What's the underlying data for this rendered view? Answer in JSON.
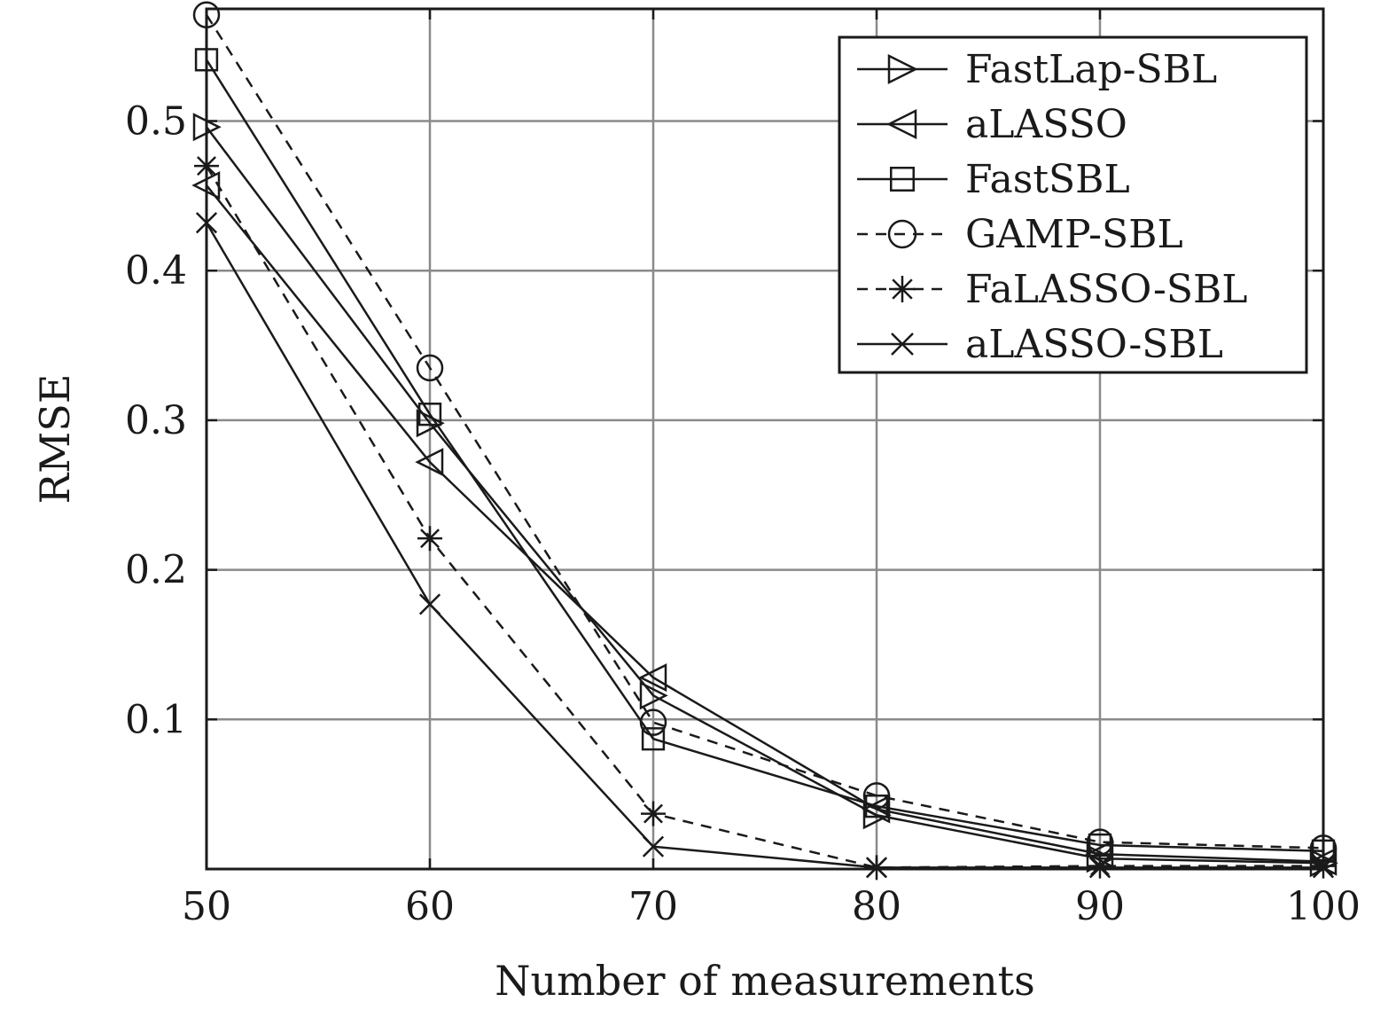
{
  "chart_data": {
    "type": "line",
    "title": "",
    "xlabel": "Number of measurements",
    "ylabel": "RMSE",
    "x": [
      50,
      60,
      70,
      80,
      90,
      100
    ],
    "xlim": [
      50,
      100
    ],
    "ylim": [
      0,
      0.575
    ],
    "xticks": [
      "50",
      "60",
      "70",
      "80",
      "90",
      "100"
    ],
    "yticks": [
      "0.1",
      "0.2",
      "0.3",
      "0.4",
      "0.5"
    ],
    "ytick_values": [
      0.1,
      0.2,
      0.3,
      0.4,
      0.5
    ],
    "grid": true,
    "legend_position": "top-right",
    "series": [
      {
        "name": "FastLap-SBL",
        "marker": "triangle-right",
        "dash": "solid",
        "color": "#1a1a1a",
        "values": [
          0.496,
          0.298,
          0.116,
          0.036,
          0.007,
          0.004
        ]
      },
      {
        "name": "aLASSO",
        "marker": "triangle-left",
        "dash": "solid",
        "color": "#1a1a1a",
        "values": [
          0.457,
          0.272,
          0.128,
          0.04,
          0.01,
          0.005
        ]
      },
      {
        "name": "FastSBL",
        "marker": "square",
        "dash": "solid",
        "color": "#1a1a1a",
        "values": [
          0.541,
          0.304,
          0.087,
          0.042,
          0.016,
          0.012
        ]
      },
      {
        "name": "GAMP-SBL",
        "marker": "circle",
        "dash": "dashed",
        "color": "#1a1a1a",
        "values": [
          0.571,
          0.335,
          0.098,
          0.049,
          0.018,
          0.014
        ]
      },
      {
        "name": "FaLASSO-SBL",
        "marker": "asterisk",
        "dash": "dashed",
        "color": "#1a1a1a",
        "values": [
          0.47,
          0.221,
          0.037,
          0.001,
          0.002,
          0.002
        ]
      },
      {
        "name": "aLASSO-SBL",
        "marker": "cross",
        "dash": "solid",
        "color": "#1a1a1a",
        "values": [
          0.432,
          0.177,
          0.015,
          0.001,
          0.001,
          0.001
        ]
      }
    ]
  }
}
